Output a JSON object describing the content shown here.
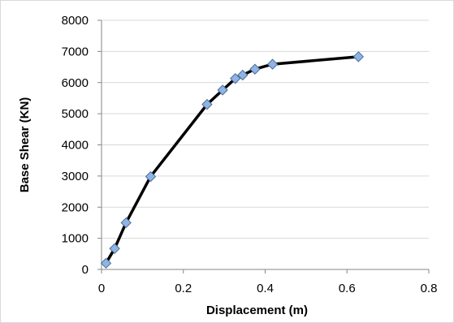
{
  "chart_data": {
    "type": "scatter",
    "title": "",
    "xlabel": "Displacement (m)",
    "ylabel": "Base Shear (KN)",
    "xlim": [
      0,
      0.8
    ],
    "ylim": [
      0,
      8000
    ],
    "x_ticks": [
      "0",
      "0.2",
      "0.4",
      "0.6",
      "0.8"
    ],
    "y_ticks": [
      "0",
      "1000",
      "2000",
      "3000",
      "4000",
      "5000",
      "6000",
      "7000",
      "8000"
    ],
    "grid": "horizontal",
    "legend": "none",
    "series": [
      {
        "x": [
          0.011,
          0.032,
          0.06,
          0.12,
          0.258,
          0.296,
          0.327,
          0.345,
          0.375,
          0.418,
          0.628
        ],
        "y": [
          200,
          670,
          1500,
          2980,
          5300,
          5760,
          6130,
          6240,
          6430,
          6590,
          6830
        ],
        "line_color": "#000000",
        "marker": "diamond",
        "marker_fill": "#8EB4E3",
        "marker_stroke": "#4F6E9A"
      }
    ]
  }
}
